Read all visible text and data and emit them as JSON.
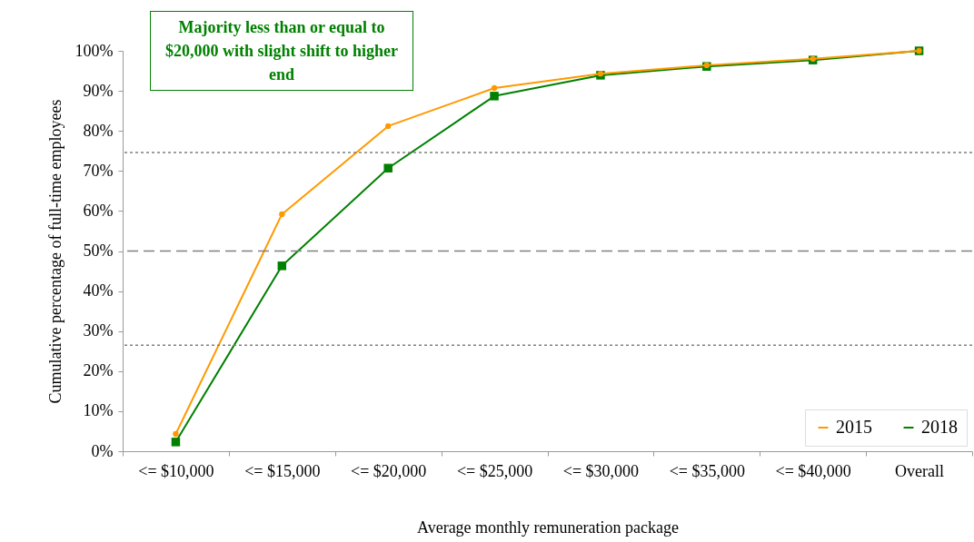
{
  "chart_data": {
    "type": "line",
    "xlabel": "Average monthly remuneration package",
    "ylabel": "Cumulative  percentage  of full-time  employees",
    "categories": [
      "<= $10,000",
      "<= $15,000",
      "<= $20,000",
      "<= $25,000",
      "<= $30,000",
      "<= $35,000",
      "<= $40,000",
      "Overall"
    ],
    "series": [
      {
        "name": "2015",
        "color": "#ff9900",
        "marker": "circle",
        "values": [
          4.3,
          59.2,
          81.2,
          90.7,
          94.3,
          96.4,
          98.0,
          100
        ]
      },
      {
        "name": "2018",
        "color": "#008000",
        "marker": "square",
        "values": [
          2.3,
          46.3,
          70.7,
          88.7,
          93.9,
          96.1,
          97.7,
          100
        ]
      }
    ],
    "ylim": [
      0,
      100
    ],
    "yticks": [
      {
        "value": 0,
        "label": "0%"
      },
      {
        "value": 10,
        "label": "10%"
      },
      {
        "value": 20,
        "label": "20%"
      },
      {
        "value": 30,
        "label": "30%"
      },
      {
        "value": 40,
        "label": "40%"
      },
      {
        "value": 50,
        "label": "50%"
      },
      {
        "value": 60,
        "label": "60%"
      },
      {
        "value": 70,
        "label": "70%"
      },
      {
        "value": 80,
        "label": "80%"
      },
      {
        "value": 90,
        "label": "90%"
      },
      {
        "value": 100,
        "label": "100%"
      }
    ],
    "ref_lines": [
      {
        "axis": "y",
        "value": 74.6,
        "color": "#808080",
        "line_style": "dotted"
      },
      {
        "axis": "y",
        "value": 50,
        "color": "#808080",
        "line_style": "dashed"
      },
      {
        "axis": "y",
        "value": 26.5,
        "color": "#808080",
        "line_style": "dotted"
      }
    ],
    "annotations": [
      "Majority less than  or equal to $20,000 with slight shift to higher end"
    ],
    "legend": "bottom right",
    "grid": false
  }
}
